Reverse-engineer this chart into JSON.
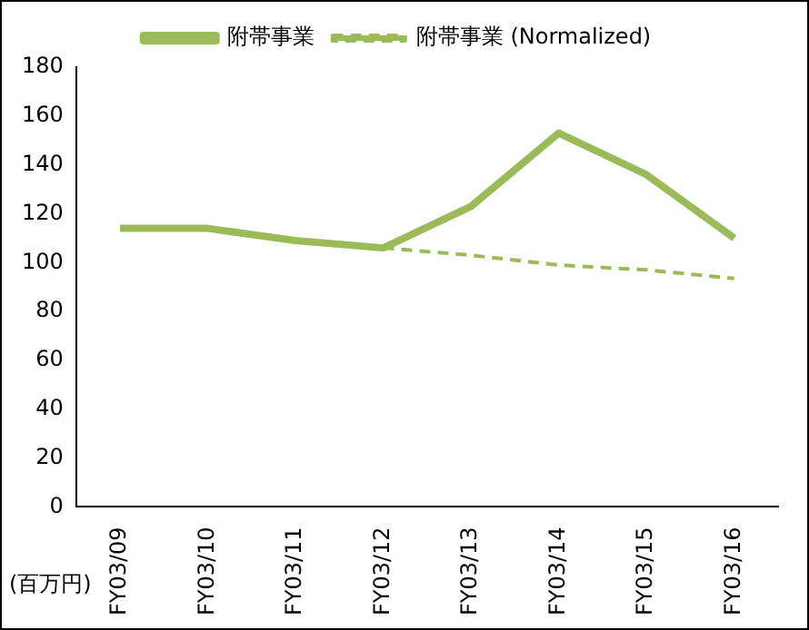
{
  "chart_data": {
    "type": "line",
    "ylabel": "(百万円)",
    "categories": [
      "FY03/09",
      "FY03/10",
      "FY03/11",
      "FY03/12",
      "FY03/13",
      "FY03/14",
      "FY03/15",
      "FY03/16"
    ],
    "series": [
      {
        "name": "附帯事業",
        "color": "#9bbb59",
        "line_style": "solid",
        "values": [
          114,
          114,
          109,
          106,
          123,
          153,
          136,
          110
        ]
      },
      {
        "name": "附帯事業 (Normalized)",
        "color": "#9bbb59",
        "line_style": "dashed",
        "values": [
          null,
          null,
          null,
          106,
          103,
          99,
          97,
          93.5
        ]
      }
    ],
    "ylim": [
      0,
      180
    ],
    "yticks": [
      0,
      20,
      40,
      60,
      80,
      100,
      120,
      140,
      160,
      180
    ],
    "grid": false,
    "legend": "top",
    "marker": "none"
  }
}
